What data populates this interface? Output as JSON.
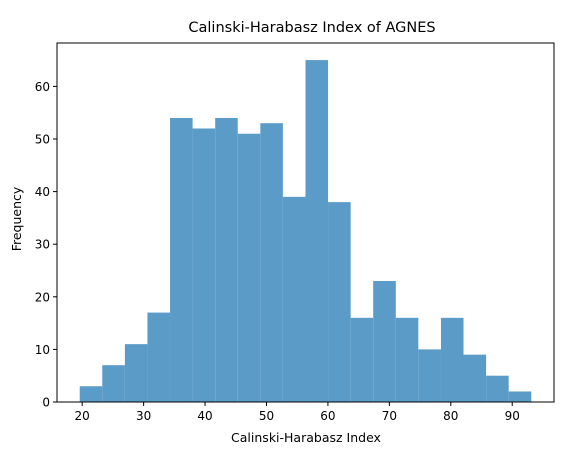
{
  "chart_data": {
    "type": "bar",
    "title": "Calinski-Harabasz Index of AGNES",
    "xlabel": "Calinski-Harabasz Index",
    "ylabel": "Frequency",
    "bin_edges": [
      19.6,
      23.27,
      26.95,
      30.62,
      34.3,
      37.97,
      41.65,
      45.32,
      49.0,
      52.67,
      56.35,
      60.02,
      63.7,
      67.37,
      71.05,
      74.72,
      78.4,
      82.07,
      85.75,
      89.42,
      93.1
    ],
    "values": [
      3,
      7,
      11,
      17,
      54,
      52,
      54,
      51,
      53,
      39,
      65,
      38,
      16,
      23,
      16,
      10,
      16,
      9,
      5,
      2
    ],
    "xlim": [
      15.9,
      96.8
    ],
    "ylim": [
      0,
      68.25
    ],
    "x_ticks": [
      20,
      30,
      40,
      50,
      60,
      70,
      80,
      90
    ],
    "y_ticks": [
      0,
      10,
      20,
      30,
      40,
      50,
      60
    ],
    "bar_color": "#5a9bc8",
    "grid": false,
    "legend": "none"
  }
}
